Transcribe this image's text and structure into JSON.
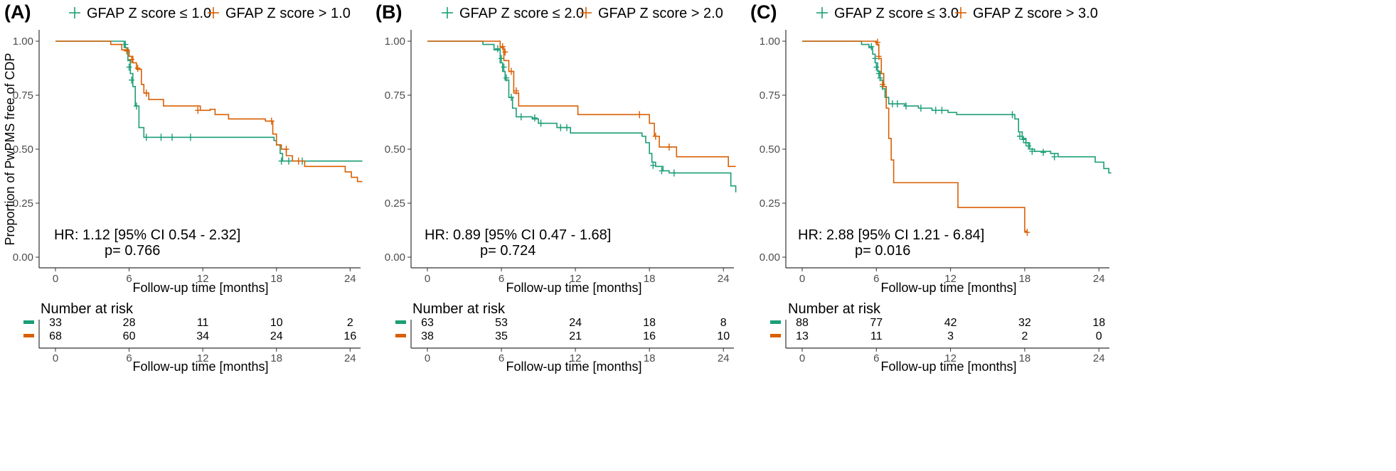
{
  "colors": {
    "low": "#1b9e77",
    "high": "#d95f02",
    "axis": "#333333"
  },
  "shared": {
    "ylabel": "Proportion of PwPMS free of CDP",
    "xlabel": "Follow-up time [months]",
    "risk_title": "Number at risk",
    "risk_xlabel": "Follow-up time [months]",
    "x_ticks": [
      "0",
      "6",
      "12",
      "18",
      "24"
    ],
    "y_ticks": [
      "0.00",
      "0.25",
      "0.50",
      "0.75",
      "1.00"
    ]
  },
  "chart_data": [
    {
      "type": "line",
      "panel_label": "(A)",
      "legend": [
        "GFAP Z score ≤ 1.0",
        "GFAP Z score > 1.0"
      ],
      "annotation_hr": "HR: 1.12 [95% CI 0.54 - 2.32]",
      "annotation_p": "p= 0.766",
      "xlabel": "Follow-up time [months]",
      "ylabel": "Proportion of PwPMS free of CDP",
      "xlim": [
        0,
        25
      ],
      "ylim": [
        0,
        1
      ],
      "series": [
        {
          "name": "GFAP Z score ≤ 1.0",
          "steps": [
            [
              0,
              1.0
            ],
            [
              5.6,
              0.97
            ],
            [
              5.9,
              0.91
            ],
            [
              6.1,
              0.85
            ],
            [
              6.3,
              0.79
            ],
            [
              6.5,
              0.7
            ],
            [
              6.8,
              0.6
            ],
            [
              7.2,
              0.555
            ],
            [
              17.8,
              0.54
            ],
            [
              18.0,
              0.52
            ],
            [
              18.3,
              0.48
            ],
            [
              18.5,
              0.445
            ],
            [
              25,
              0.445
            ]
          ],
          "censor": [
            [
              5.7,
              0.985
            ],
            [
              6.0,
              0.88
            ],
            [
              6.2,
              0.82
            ],
            [
              6.6,
              0.7
            ],
            [
              7.4,
              0.555
            ],
            [
              8.6,
              0.555
            ],
            [
              9.5,
              0.555
            ],
            [
              11.0,
              0.555
            ],
            [
              18.4,
              0.445
            ],
            [
              19.0,
              0.445
            ],
            [
              20.1,
              0.445
            ]
          ]
        },
        {
          "name": "GFAP Z score > 1.0",
          "steps": [
            [
              0,
              1.0
            ],
            [
              4.5,
              0.985
            ],
            [
              5.4,
              0.96
            ],
            [
              6.0,
              0.93
            ],
            [
              6.3,
              0.9
            ],
            [
              6.6,
              0.87
            ],
            [
              7.0,
              0.8
            ],
            [
              7.2,
              0.76
            ],
            [
              7.6,
              0.73
            ],
            [
              8.8,
              0.7
            ],
            [
              11.8,
              0.68
            ],
            [
              12.6,
              0.685
            ],
            [
              13.0,
              0.66
            ],
            [
              14.1,
              0.64
            ],
            [
              17.1,
              0.63
            ],
            [
              17.7,
              0.57
            ],
            [
              18.0,
              0.52
            ],
            [
              18.4,
              0.5
            ],
            [
              18.8,
              0.47
            ],
            [
              19.3,
              0.445
            ],
            [
              20.3,
              0.42
            ],
            [
              23.6,
              0.395
            ],
            [
              24.1,
              0.37
            ],
            [
              24.6,
              0.35
            ],
            [
              25,
              0.35
            ]
          ],
          "censor": [
            [
              5.8,
              0.955
            ],
            [
              6.2,
              0.915
            ],
            [
              6.7,
              0.875
            ],
            [
              7.4,
              0.76
            ],
            [
              11.6,
              0.68
            ],
            [
              17.6,
              0.63
            ],
            [
              18.8,
              0.5
            ],
            [
              19.8,
              0.445
            ]
          ]
        }
      ],
      "risk_table": {
        "low": [
          "33",
          "28",
          "11",
          "10",
          "2"
        ],
        "high": [
          "68",
          "60",
          "34",
          "24",
          "16"
        ]
      }
    },
    {
      "type": "line",
      "panel_label": "(B)",
      "legend": [
        "GFAP Z score ≤ 2.0",
        "GFAP Z score > 2.0"
      ],
      "annotation_hr": "HR: 0.89 [95% CI 0.47 - 1.68]",
      "annotation_p": "p= 0.724",
      "xlabel": "Follow-up time [months]",
      "ylabel": "",
      "xlim": [
        0,
        25
      ],
      "ylim": [
        0,
        1
      ],
      "series": [
        {
          "name": "GFAP Z score ≤ 2.0",
          "steps": [
            [
              0,
              1.0
            ],
            [
              4.5,
              0.985
            ],
            [
              5.4,
              0.96
            ],
            [
              5.9,
              0.9
            ],
            [
              6.1,
              0.86
            ],
            [
              6.3,
              0.82
            ],
            [
              6.6,
              0.74
            ],
            [
              6.9,
              0.69
            ],
            [
              7.2,
              0.65
            ],
            [
              8.5,
              0.64
            ],
            [
              9.0,
              0.62
            ],
            [
              10.5,
              0.6
            ],
            [
              11.6,
              0.575
            ],
            [
              17.4,
              0.56
            ],
            [
              17.7,
              0.53
            ],
            [
              18.0,
              0.48
            ],
            [
              18.2,
              0.44
            ],
            [
              18.5,
              0.42
            ],
            [
              19.1,
              0.4
            ],
            [
              19.6,
              0.39
            ],
            [
              24.6,
              0.33
            ],
            [
              25,
              0.3
            ]
          ],
          "censor": [
            [
              5.7,
              0.965
            ],
            [
              6.0,
              0.92
            ],
            [
              6.2,
              0.88
            ],
            [
              6.4,
              0.83
            ],
            [
              6.8,
              0.74
            ],
            [
              7.6,
              0.65
            ],
            [
              8.7,
              0.645
            ],
            [
              9.2,
              0.62
            ],
            [
              10.8,
              0.6
            ],
            [
              11.3,
              0.6
            ],
            [
              18.3,
              0.425
            ],
            [
              19.0,
              0.4
            ],
            [
              20.0,
              0.39
            ]
          ]
        },
        {
          "name": "GFAP Z score > 2.0",
          "steps": [
            [
              0,
              1.0
            ],
            [
              5.9,
              0.97
            ],
            [
              6.2,
              0.91
            ],
            [
              6.6,
              0.86
            ],
            [
              7.0,
              0.76
            ],
            [
              7.4,
              0.7
            ],
            [
              12.2,
              0.66
            ],
            [
              18.0,
              0.62
            ],
            [
              18.4,
              0.56
            ],
            [
              18.8,
              0.51
            ],
            [
              20.2,
              0.465
            ],
            [
              24.4,
              0.42
            ],
            [
              25,
              0.42
            ]
          ],
          "censor": [
            [
              6.1,
              0.975
            ],
            [
              6.3,
              0.95
            ],
            [
              6.8,
              0.86
            ],
            [
              7.2,
              0.77
            ],
            [
              17.2,
              0.66
            ],
            [
              18.5,
              0.56
            ],
            [
              19.6,
              0.51
            ]
          ]
        }
      ],
      "risk_table": {
        "low": [
          "63",
          "53",
          "24",
          "18",
          "8"
        ],
        "high": [
          "38",
          "35",
          "21",
          "16",
          "10"
        ]
      }
    },
    {
      "type": "line",
      "panel_label": "(C)",
      "legend": [
        "GFAP Z score ≤ 3.0",
        "GFAP Z score > 3.0"
      ],
      "annotation_hr": "HR: 2.88 [95% CI 1.21 - 6.84]",
      "annotation_p": "p= 0.016",
      "xlabel": "Follow-up time [months]",
      "ylabel": "",
      "xlim": [
        0,
        25
      ],
      "ylim": [
        0,
        1
      ],
      "series": [
        {
          "name": "GFAP Z score ≤ 3.0",
          "steps": [
            [
              0,
              1.0
            ],
            [
              4.8,
              0.985
            ],
            [
              5.4,
              0.97
            ],
            [
              5.7,
              0.94
            ],
            [
              5.9,
              0.9
            ],
            [
              6.1,
              0.86
            ],
            [
              6.3,
              0.82
            ],
            [
              6.5,
              0.78
            ],
            [
              6.7,
              0.74
            ],
            [
              7.0,
              0.71
            ],
            [
              8.3,
              0.7
            ],
            [
              9.4,
              0.69
            ],
            [
              10.5,
              0.68
            ],
            [
              11.8,
              0.67
            ],
            [
              12.5,
              0.66
            ],
            [
              17.2,
              0.64
            ],
            [
              17.5,
              0.58
            ],
            [
              17.8,
              0.55
            ],
            [
              18.1,
              0.53
            ],
            [
              18.4,
              0.5
            ],
            [
              18.8,
              0.49
            ],
            [
              20.1,
              0.48
            ],
            [
              20.7,
              0.465
            ],
            [
              23.7,
              0.44
            ],
            [
              24.4,
              0.41
            ],
            [
              24.8,
              0.39
            ],
            [
              25,
              0.39
            ]
          ],
          "censor": [
            [
              5.6,
              0.975
            ],
            [
              5.9,
              0.92
            ],
            [
              6.0,
              0.88
            ],
            [
              6.2,
              0.85
            ],
            [
              6.3,
              0.83
            ],
            [
              6.5,
              0.79
            ],
            [
              7.3,
              0.71
            ],
            [
              7.7,
              0.71
            ],
            [
              8.4,
              0.7
            ],
            [
              9.6,
              0.69
            ],
            [
              10.8,
              0.68
            ],
            [
              11.3,
              0.68
            ],
            [
              17.0,
              0.66
            ],
            [
              17.6,
              0.56
            ],
            [
              17.9,
              0.545
            ],
            [
              18.1,
              0.53
            ],
            [
              18.3,
              0.515
            ],
            [
              18.6,
              0.49
            ],
            [
              19.5,
              0.485
            ],
            [
              20.4,
              0.465
            ]
          ]
        },
        {
          "name": "GFAP Z score > 3.0",
          "steps": [
            [
              0,
              1.0
            ],
            [
              6.0,
              0.985
            ],
            [
              6.2,
              0.92
            ],
            [
              6.4,
              0.85
            ],
            [
              6.6,
              0.79
            ],
            [
              6.8,
              0.69
            ],
            [
              7.0,
              0.55
            ],
            [
              7.2,
              0.45
            ],
            [
              7.4,
              0.345
            ],
            [
              12.6,
              0.23
            ],
            [
              18.0,
              0.12
            ],
            [
              18.2,
              0.12
            ]
          ],
          "censor": [
            [
              6.1,
              0.995
            ],
            [
              6.2,
              0.93
            ],
            [
              6.5,
              0.8
            ],
            [
              18.2,
              0.115
            ]
          ]
        }
      ],
      "risk_table": {
        "low": [
          "88",
          "77",
          "42",
          "32",
          "18"
        ],
        "high": [
          "13",
          "11",
          "3",
          "2",
          "0"
        ]
      }
    }
  ]
}
